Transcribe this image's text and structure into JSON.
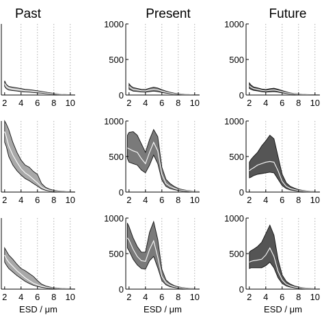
{
  "chart_data": {
    "type": "area",
    "columns": [
      "Past",
      "Present",
      "Future"
    ],
    "xlabel": "ESD / μm",
    "xlim": [
      1.6,
      10.6
    ],
    "xticks": [
      2,
      4,
      6,
      8,
      10
    ],
    "ylim": [
      0,
      1000
    ],
    "yticks": [
      0,
      500,
      1000
    ],
    "grid": "vertical-dotted",
    "panels": [
      {
        "row": 0,
        "col": 0,
        "fill": "#a8a8a8",
        "show_yticks": false,
        "show_xlabel": false,
        "x": [
          2.0,
          2.2,
          2.5,
          3.0,
          3.5,
          4.0,
          4.5,
          5.0,
          5.5,
          6.0,
          6.5,
          7.0,
          7.5,
          8.0,
          8.5,
          9.0,
          9.5,
          10.0,
          10.5
        ],
        "mean": [
          160,
          120,
          95,
          85,
          78,
          68,
          60,
          58,
          52,
          45,
          38,
          30,
          24,
          18,
          12,
          8,
          5,
          3,
          2
        ],
        "upper": [
          200,
          150,
          120,
          110,
          100,
          90,
          80,
          75,
          68,
          60,
          50,
          40,
          32,
          24,
          16,
          10,
          7,
          4,
          2
        ],
        "lower": [
          120,
          90,
          70,
          62,
          56,
          48,
          42,
          40,
          36,
          30,
          26,
          20,
          16,
          12,
          8,
          5,
          3,
          2,
          1
        ]
      },
      {
        "row": 0,
        "col": 1,
        "fill": "#7a7a7a",
        "show_yticks": true,
        "show_xlabel": false,
        "x": [
          2.0,
          2.2,
          2.5,
          3.0,
          3.5,
          4.0,
          4.5,
          5.0,
          5.5,
          6.0,
          6.5,
          7.0,
          7.5,
          8.0,
          8.5,
          9.0,
          9.5,
          10.0,
          10.5
        ],
        "mean": [
          120,
          100,
          80,
          70,
          60,
          58,
          70,
          82,
          72,
          55,
          40,
          28,
          20,
          14,
          10,
          7,
          5,
          3,
          2
        ],
        "upper": [
          160,
          130,
          105,
          92,
          80,
          78,
          95,
          110,
          98,
          75,
          55,
          38,
          27,
          19,
          13,
          9,
          6,
          4,
          3
        ],
        "lower": [
          80,
          70,
          55,
          50,
          42,
          40,
          48,
          55,
          48,
          36,
          26,
          18,
          13,
          9,
          6,
          4,
          3,
          2,
          1
        ]
      },
      {
        "row": 0,
        "col": 2,
        "fill": "#555555",
        "show_yticks": true,
        "show_xlabel": false,
        "x": [
          2.0,
          2.2,
          2.5,
          3.0,
          3.5,
          4.0,
          4.5,
          5.0,
          5.5,
          6.0,
          6.5,
          7.0,
          7.5,
          8.0,
          8.5,
          9.0,
          9.5,
          10.0,
          10.5
        ],
        "mean": [
          130,
          110,
          90,
          80,
          65,
          58,
          65,
          70,
          60,
          45,
          32,
          22,
          15,
          10,
          7,
          5,
          3,
          2,
          1
        ],
        "upper": [
          170,
          140,
          115,
          100,
          85,
          78,
          88,
          95,
          82,
          62,
          44,
          30,
          21,
          14,
          10,
          7,
          5,
          3,
          2
        ],
        "lower": [
          90,
          80,
          65,
          58,
          46,
          40,
          44,
          47,
          40,
          30,
          21,
          14,
          10,
          6,
          4,
          3,
          2,
          1,
          1
        ]
      },
      {
        "row": 1,
        "col": 0,
        "fill": "#a8a8a8",
        "show_yticks": false,
        "show_xlabel": false,
        "x": [
          2.0,
          2.2,
          2.5,
          3.0,
          3.5,
          4.0,
          4.5,
          5.0,
          5.5,
          6.0,
          6.5,
          7.0,
          7.5,
          8.0,
          8.5,
          9.0,
          9.5,
          10.0,
          10.5
        ],
        "mean": [
          850,
          780,
          650,
          520,
          420,
          330,
          270,
          230,
          180,
          130,
          70,
          40,
          25,
          15,
          10,
          6,
          4,
          3,
          2
        ],
        "upper": [
          1000,
          960,
          880,
          700,
          560,
          450,
          380,
          350,
          290,
          250,
          120,
          65,
          40,
          25,
          16,
          10,
          7,
          5,
          3
        ],
        "lower": [
          700,
          640,
          500,
          380,
          300,
          240,
          190,
          160,
          120,
          85,
          45,
          25,
          15,
          9,
          6,
          4,
          3,
          2,
          1
        ]
      },
      {
        "row": 1,
        "col": 1,
        "fill": "#7a7a7a",
        "show_yticks": true,
        "show_xlabel": false,
        "x": [
          1.8,
          2.0,
          2.5,
          3.0,
          3.5,
          4.0,
          4.5,
          5.0,
          5.5,
          6.0,
          6.5,
          7.0,
          7.5,
          8.0,
          8.5,
          9.0,
          9.5,
          10.0,
          10.5
        ],
        "mean": [
          620,
          610,
          580,
          560,
          470,
          400,
          560,
          700,
          580,
          250,
          120,
          80,
          55,
          35,
          25,
          18,
          12,
          8,
          5
        ],
        "upper": [
          800,
          840,
          850,
          800,
          680,
          560,
          740,
          880,
          780,
          350,
          180,
          120,
          80,
          50,
          35,
          25,
          17,
          11,
          7
        ],
        "lower": [
          470,
          420,
          400,
          380,
          310,
          270,
          380,
          520,
          400,
          170,
          80,
          50,
          35,
          22,
          15,
          11,
          8,
          5,
          3
        ]
      },
      {
        "row": 1,
        "col": 2,
        "fill": "#555555",
        "show_yticks": true,
        "show_xlabel": false,
        "x": [
          2.0,
          2.2,
          2.5,
          3.0,
          3.5,
          4.0,
          4.5,
          5.0,
          5.5,
          6.0,
          6.5,
          7.0,
          7.5,
          8.0,
          8.5,
          9.0,
          9.5,
          10.0,
          10.5
        ],
        "mean": [
          300,
          320,
          340,
          380,
          400,
          420,
          430,
          420,
          300,
          150,
          80,
          50,
          35,
          22,
          15,
          10,
          7,
          5,
          3
        ],
        "upper": [
          420,
          460,
          500,
          560,
          650,
          720,
          800,
          750,
          500,
          250,
          130,
          80,
          55,
          35,
          23,
          15,
          10,
          7,
          4
        ],
        "lower": [
          200,
          210,
          230,
          250,
          260,
          270,
          280,
          270,
          180,
          90,
          50,
          30,
          20,
          13,
          9,
          6,
          4,
          3,
          2
        ]
      },
      {
        "row": 2,
        "col": 0,
        "fill": "#a8a8a8",
        "show_yticks": false,
        "show_xlabel": true,
        "x": [
          2.0,
          2.2,
          2.5,
          3.0,
          3.5,
          4.0,
          4.5,
          5.0,
          5.5,
          6.0,
          6.5,
          7.0,
          7.5,
          8.0,
          8.5,
          9.0,
          9.5,
          10.0,
          10.5
        ],
        "mean": [
          480,
          430,
          380,
          320,
          260,
          210,
          160,
          120,
          85,
          60,
          40,
          28,
          20,
          14,
          10,
          7,
          5,
          3,
          2
        ],
        "upper": [
          580,
          540,
          480,
          420,
          350,
          290,
          260,
          220,
          180,
          120,
          70,
          45,
          30,
          20,
          14,
          10,
          7,
          5,
          3
        ],
        "lower": [
          380,
          340,
          290,
          240,
          190,
          150,
          110,
          80,
          55,
          38,
          25,
          17,
          12,
          8,
          6,
          4,
          3,
          2,
          1
        ]
      },
      {
        "row": 2,
        "col": 1,
        "fill": "#7a7a7a",
        "show_yticks": true,
        "show_xlabel": true,
        "x": [
          1.8,
          2.0,
          2.5,
          3.0,
          3.5,
          4.0,
          4.5,
          5.0,
          5.5,
          6.0,
          6.5,
          7.0,
          7.5,
          8.0,
          8.5,
          9.0,
          9.5,
          10.0,
          10.5
        ],
        "mean": [
          720,
          690,
          560,
          460,
          400,
          390,
          560,
          680,
          450,
          180,
          90,
          55,
          35,
          22,
          15,
          10,
          7,
          5,
          3
        ],
        "upper": [
          930,
          880,
          720,
          600,
          520,
          520,
          800,
          950,
          700,
          280,
          130,
          80,
          50,
          32,
          22,
          15,
          10,
          7,
          4
        ],
        "lower": [
          580,
          540,
          420,
          340,
          290,
          280,
          400,
          460,
          300,
          120,
          60,
          35,
          22,
          14,
          10,
          6,
          4,
          3,
          2
        ]
      },
      {
        "row": 2,
        "col": 2,
        "fill": "#555555",
        "show_yticks": true,
        "show_xlabel": true,
        "x": [
          2.0,
          2.2,
          2.5,
          3.0,
          3.5,
          4.0,
          4.5,
          5.0,
          5.5,
          6.0,
          6.5,
          7.0,
          7.5,
          8.0,
          8.5,
          9.0,
          9.5,
          10.0,
          10.5
        ],
        "mean": [
          380,
          390,
          400,
          410,
          420,
          480,
          580,
          460,
          250,
          130,
          70,
          45,
          30,
          20,
          13,
          9,
          6,
          4,
          3
        ],
        "upper": [
          520,
          540,
          560,
          600,
          660,
          780,
          900,
          760,
          420,
          200,
          110,
          70,
          45,
          30,
          20,
          13,
          9,
          6,
          4
        ],
        "lower": [
          290,
          300,
          300,
          300,
          300,
          330,
          380,
          300,
          160,
          80,
          45,
          28,
          18,
          12,
          8,
          6,
          4,
          3,
          2
        ]
      }
    ]
  }
}
